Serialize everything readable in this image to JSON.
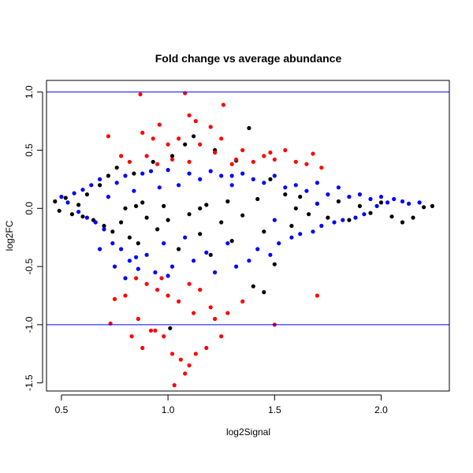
{
  "chart_data": {
    "type": "scatter",
    "title": "Fold change vs average abundance",
    "xlabel": "log2Signal",
    "ylabel": "log2FC",
    "xlim": [
      0.43,
      2.32
    ],
    "ylim": [
      -1.57,
      1.1
    ],
    "x_ticks": [
      0.5,
      1.0,
      1.5,
      2.0
    ],
    "x_tick_labels": [
      "0.5",
      "1.0",
      "1.5",
      "2.0"
    ],
    "y_ticks": [
      -1.5,
      -1.0,
      -0.5,
      0.0,
      0.5,
      1.0
    ],
    "y_tick_labels": [
      "-1.5",
      "-1.0",
      "-0.5",
      "0.0",
      "0.5",
      "1.0"
    ],
    "grid": false,
    "legend": "none",
    "reference_lines": [
      {
        "axis": "y",
        "value": 1.0,
        "color": "#0000ff"
      },
      {
        "axis": "y",
        "value": -1.0,
        "color": "#0000ff"
      }
    ],
    "series": [
      {
        "color": "#000000",
        "points": [
          [
            0.47,
            0.06
          ],
          [
            0.49,
            -0.02
          ],
          [
            0.52,
            0.09
          ],
          [
            0.55,
            -0.05
          ],
          [
            0.58,
            0.03
          ],
          [
            0.6,
            -0.07
          ],
          [
            0.62,
            0.12
          ],
          [
            0.65,
            -0.1
          ],
          [
            0.68,
            0.2
          ],
          [
            0.7,
            -0.15
          ],
          [
            0.72,
            0.28
          ],
          [
            0.74,
            -0.2
          ],
          [
            0.76,
            0.35
          ],
          [
            0.78,
            -0.12
          ],
          [
            0.8,
            0.0
          ],
          [
            0.82,
            -0.25
          ],
          [
            0.84,
            0.3
          ],
          [
            0.86,
            -0.3
          ],
          [
            0.88,
            0.05
          ],
          [
            0.9,
            -0.08
          ],
          [
            0.93,
            0.4
          ],
          [
            0.95,
            -0.18
          ],
          [
            0.98,
            0.02
          ],
          [
            1.0,
            -0.1
          ],
          [
            1.02,
            0.45
          ],
          [
            1.05,
            -0.35
          ],
          [
            1.08,
            0.55
          ],
          [
            1.1,
            -0.05
          ],
          [
            1.12,
            0.62
          ],
          [
            1.15,
            -0.22
          ],
          [
            1.18,
            0.03
          ],
          [
            1.2,
            -0.4
          ],
          [
            1.22,
            0.5
          ],
          [
            1.25,
            -0.12
          ],
          [
            1.28,
            0.06
          ],
          [
            1.3,
            -0.28
          ],
          [
            1.32,
            0.41
          ],
          [
            1.35,
            -0.06
          ],
          [
            1.38,
            0.69
          ],
          [
            1.4,
            -0.67
          ],
          [
            1.42,
            0.08
          ],
          [
            1.45,
            -0.2
          ],
          [
            1.48,
            0.25
          ],
          [
            1.5,
            -0.48
          ],
          [
            1.55,
            0.12
          ],
          [
            1.58,
            -0.15
          ],
          [
            1.62,
            0.1
          ],
          [
            1.66,
            -0.05
          ],
          [
            1.7,
            0.04
          ],
          [
            1.75,
            -0.08
          ],
          [
            1.8,
            0.06
          ],
          [
            1.85,
            -0.1
          ],
          [
            1.9,
            0.02
          ],
          [
            1.95,
            -0.04
          ],
          [
            2.0,
            0.05
          ],
          [
            2.05,
            -0.07
          ],
          [
            2.1,
            -0.12
          ],
          [
            2.15,
            -0.08
          ],
          [
            2.2,
            0.01
          ],
          [
            2.24,
            0.02
          ],
          [
            1.01,
            -1.03
          ],
          [
            1.45,
            -0.72
          ],
          [
            0.85,
            0.02
          ],
          [
            1.15,
            0.0
          ],
          [
            1.6,
            0.0
          ]
        ]
      },
      {
        "color": "#0000ff",
        "points": [
          [
            0.5,
            0.1
          ],
          [
            0.53,
            0.05
          ],
          [
            0.56,
            0.13
          ],
          [
            0.58,
            -0.03
          ],
          [
            0.6,
            0.16
          ],
          [
            0.62,
            -0.08
          ],
          [
            0.64,
            0.2
          ],
          [
            0.66,
            -0.12
          ],
          [
            0.68,
            0.25
          ],
          [
            0.7,
            -0.18
          ],
          [
            0.72,
            0.1
          ],
          [
            0.74,
            -0.3
          ],
          [
            0.76,
            0.22
          ],
          [
            0.78,
            -0.35
          ],
          [
            0.8,
            0.28
          ],
          [
            0.82,
            -0.45
          ],
          [
            0.84,
            0.15
          ],
          [
            0.86,
            -0.52
          ],
          [
            0.88,
            0.3
          ],
          [
            0.9,
            -0.4
          ],
          [
            0.92,
            0.32
          ],
          [
            0.94,
            -0.55
          ],
          [
            0.96,
            0.18
          ],
          [
            0.98,
            -0.3
          ],
          [
            1.0,
            0.33
          ],
          [
            1.02,
            -0.5
          ],
          [
            1.05,
            0.2
          ],
          [
            1.08,
            -0.25
          ],
          [
            1.1,
            0.3
          ],
          [
            1.12,
            -0.45
          ],
          [
            1.15,
            0.25
          ],
          [
            1.18,
            -0.38
          ],
          [
            1.2,
            0.32
          ],
          [
            1.22,
            -0.55
          ],
          [
            1.25,
            0.28
          ],
          [
            1.28,
            -0.3
          ],
          [
            1.3,
            0.2
          ],
          [
            1.32,
            -0.5
          ],
          [
            1.35,
            0.3
          ],
          [
            1.38,
            -0.45
          ],
          [
            1.4,
            0.25
          ],
          [
            1.42,
            -0.35
          ],
          [
            1.45,
            0.22
          ],
          [
            1.48,
            -0.4
          ],
          [
            1.5,
            0.28
          ],
          [
            1.52,
            -0.3
          ],
          [
            1.55,
            0.18
          ],
          [
            1.58,
            -0.25
          ],
          [
            1.6,
            0.2
          ],
          [
            1.62,
            -0.22
          ],
          [
            1.65,
            0.15
          ],
          [
            1.68,
            -0.2
          ],
          [
            1.7,
            0.22
          ],
          [
            1.72,
            -0.15
          ],
          [
            1.75,
            0.12
          ],
          [
            1.78,
            -0.12
          ],
          [
            1.8,
            0.18
          ],
          [
            1.82,
            -0.1
          ],
          [
            1.85,
            0.1
          ],
          [
            1.88,
            -0.08
          ],
          [
            1.9,
            0.12
          ],
          [
            1.92,
            -0.05
          ],
          [
            1.95,
            0.08
          ],
          [
            1.98,
            0.02
          ],
          [
            2.0,
            0.1
          ],
          [
            2.03,
            0.05
          ],
          [
            2.06,
            0.08
          ],
          [
            2.1,
            0.06
          ],
          [
            2.13,
            0.04
          ],
          [
            2.18,
            0.05
          ],
          [
            0.68,
            -0.35
          ],
          [
            0.75,
            -0.5
          ],
          [
            0.8,
            -0.6
          ],
          [
            0.85,
            -0.42
          ],
          [
            1.0,
            -0.58
          ],
          [
            1.3,
            0.28
          ],
          [
            1.5,
            -0.1
          ],
          [
            1.7,
            0.04
          ]
        ]
      },
      {
        "color": "#ff0000",
        "points": [
          [
            0.87,
            0.98
          ],
          [
            1.08,
            0.99
          ],
          [
            1.26,
            0.89
          ],
          [
            1.1,
            0.8
          ],
          [
            1.13,
            0.75
          ],
          [
            0.96,
            0.72
          ],
          [
            1.2,
            0.7
          ],
          [
            0.88,
            0.65
          ],
          [
            0.93,
            0.6
          ],
          [
            1.0,
            0.55
          ],
          [
            1.05,
            0.6
          ],
          [
            1.15,
            0.55
          ],
          [
            1.25,
            0.6
          ],
          [
            1.35,
            0.5
          ],
          [
            1.45,
            0.45
          ],
          [
            1.5,
            0.42
          ],
          [
            1.55,
            0.5
          ],
          [
            1.6,
            0.4
          ],
          [
            1.65,
            0.38
          ],
          [
            1.68,
            0.47
          ],
          [
            1.72,
            0.35
          ],
          [
            0.78,
            0.45
          ],
          [
            0.82,
            0.4
          ],
          [
            0.9,
            0.45
          ],
          [
            0.95,
            0.38
          ],
          [
            1.02,
            0.42
          ],
          [
            1.1,
            0.4
          ],
          [
            1.3,
            0.38
          ],
          [
            1.4,
            0.4
          ],
          [
            0.72,
            0.62
          ],
          [
            1.22,
            0.48
          ],
          [
            1.32,
            0.42
          ],
          [
            1.48,
            0.48
          ],
          [
            0.85,
            -0.6
          ],
          [
            0.9,
            -0.65
          ],
          [
            0.95,
            -0.7
          ],
          [
            1.0,
            -0.75
          ],
          [
            1.05,
            -0.8
          ],
          [
            1.1,
            -0.65
          ],
          [
            1.15,
            -0.7
          ],
          [
            1.2,
            -0.85
          ],
          [
            0.8,
            -0.75
          ],
          [
            0.75,
            -0.78
          ],
          [
            0.86,
            -0.95
          ],
          [
            0.92,
            -1.05
          ],
          [
            0.98,
            -1.1
          ],
          [
            1.02,
            -1.25
          ],
          [
            1.06,
            -1.3
          ],
          [
            1.1,
            -1.35
          ],
          [
            1.13,
            -1.25
          ],
          [
            1.18,
            -1.2
          ],
          [
            1.25,
            -1.1
          ],
          [
            0.88,
            -1.2
          ],
          [
            0.94,
            -1.05
          ],
          [
            1.03,
            -1.52
          ],
          [
            1.08,
            -1.42
          ],
          [
            1.22,
            -0.95
          ],
          [
            1.28,
            -0.9
          ],
          [
            0.73,
            -0.99
          ],
          [
            1.5,
            -1.0
          ],
          [
            1.7,
            -0.75
          ],
          [
            1.35,
            -0.8
          ],
          [
            0.83,
            -1.1
          ],
          [
            0.97,
            -0.6
          ],
          [
            1.12,
            -0.9
          ]
        ]
      }
    ]
  }
}
